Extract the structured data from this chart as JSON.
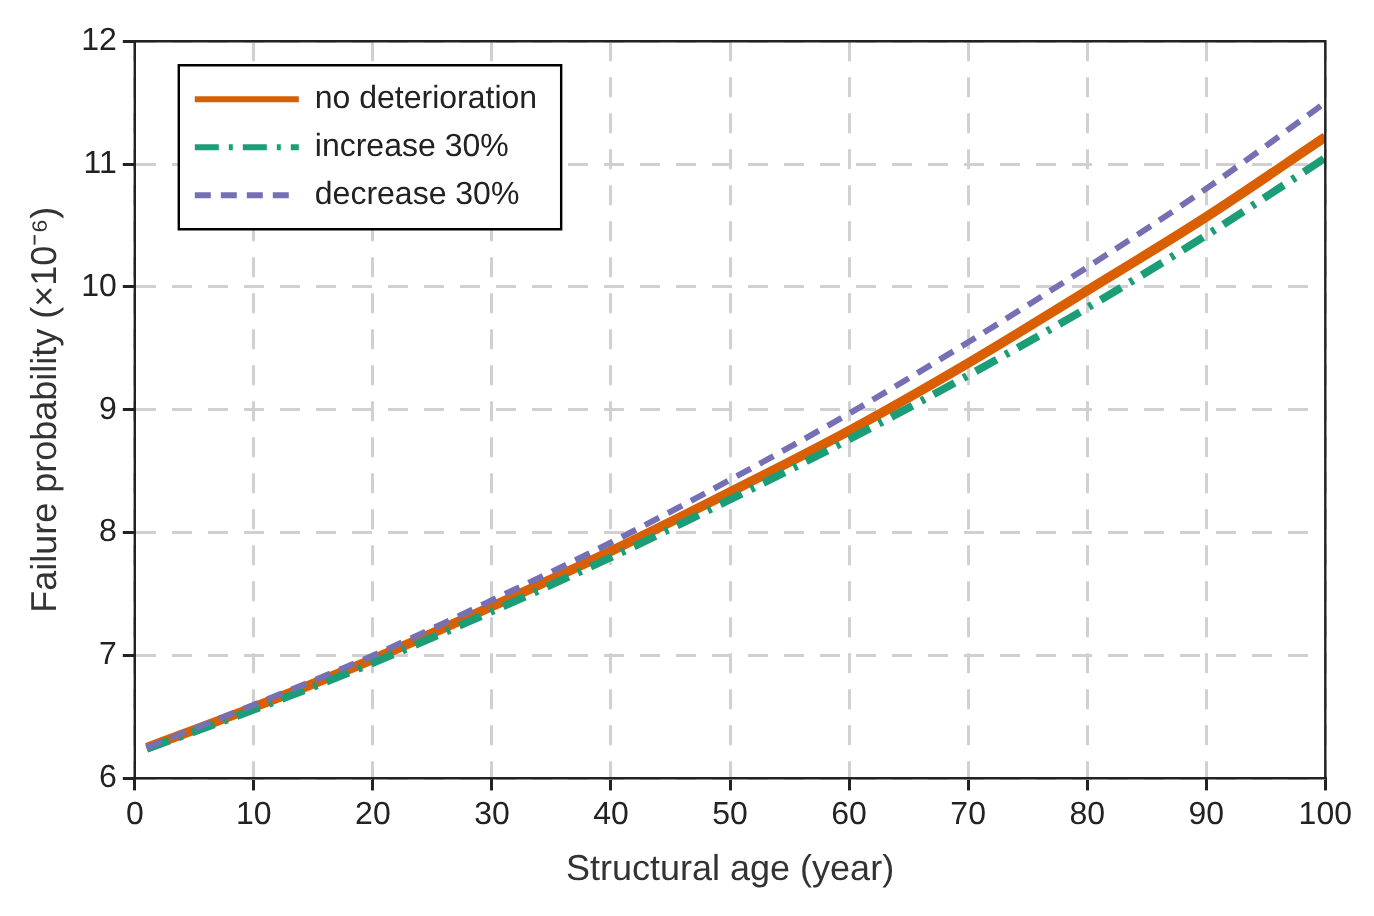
{
  "chart_data": {
    "type": "line",
    "xlabel": "Structural age (year)",
    "ylabel": "Failure probability (×10⁻⁶)",
    "xlim": [
      0,
      100
    ],
    "xticks": [
      0,
      10,
      20,
      30,
      40,
      50,
      60,
      70,
      80,
      90,
      100
    ],
    "ylim": [
      6,
      12
    ],
    "yticks": [
      6,
      7,
      8,
      9,
      10,
      11,
      12
    ],
    "x": [
      1,
      10,
      20,
      30,
      40,
      50,
      60,
      70,
      80,
      90,
      100
    ],
    "series": [
      {
        "name": "no deterioration",
        "color": "#d95f02",
        "line_style": "solid",
        "values": [
          6.25,
          6.58,
          6.97,
          7.4,
          7.85,
          8.33,
          8.83,
          9.38,
          9.97,
          10.57,
          11.22
        ]
      },
      {
        "name": "increase 30%",
        "color": "#1b9e77",
        "line_style": "dashdot",
        "values": [
          6.24,
          6.56,
          6.94,
          7.36,
          7.8,
          8.27,
          8.76,
          9.28,
          9.83,
          10.42,
          11.05
        ]
      },
      {
        "name": "decrease 30%",
        "color": "#7570b3",
        "line_style": "dashed",
        "values": [
          6.25,
          6.6,
          7.0,
          7.45,
          7.92,
          8.43,
          8.97,
          9.55,
          10.16,
          10.8,
          11.5
        ]
      }
    ],
    "grid": true,
    "legend": "top left",
    "marker": "none"
  }
}
